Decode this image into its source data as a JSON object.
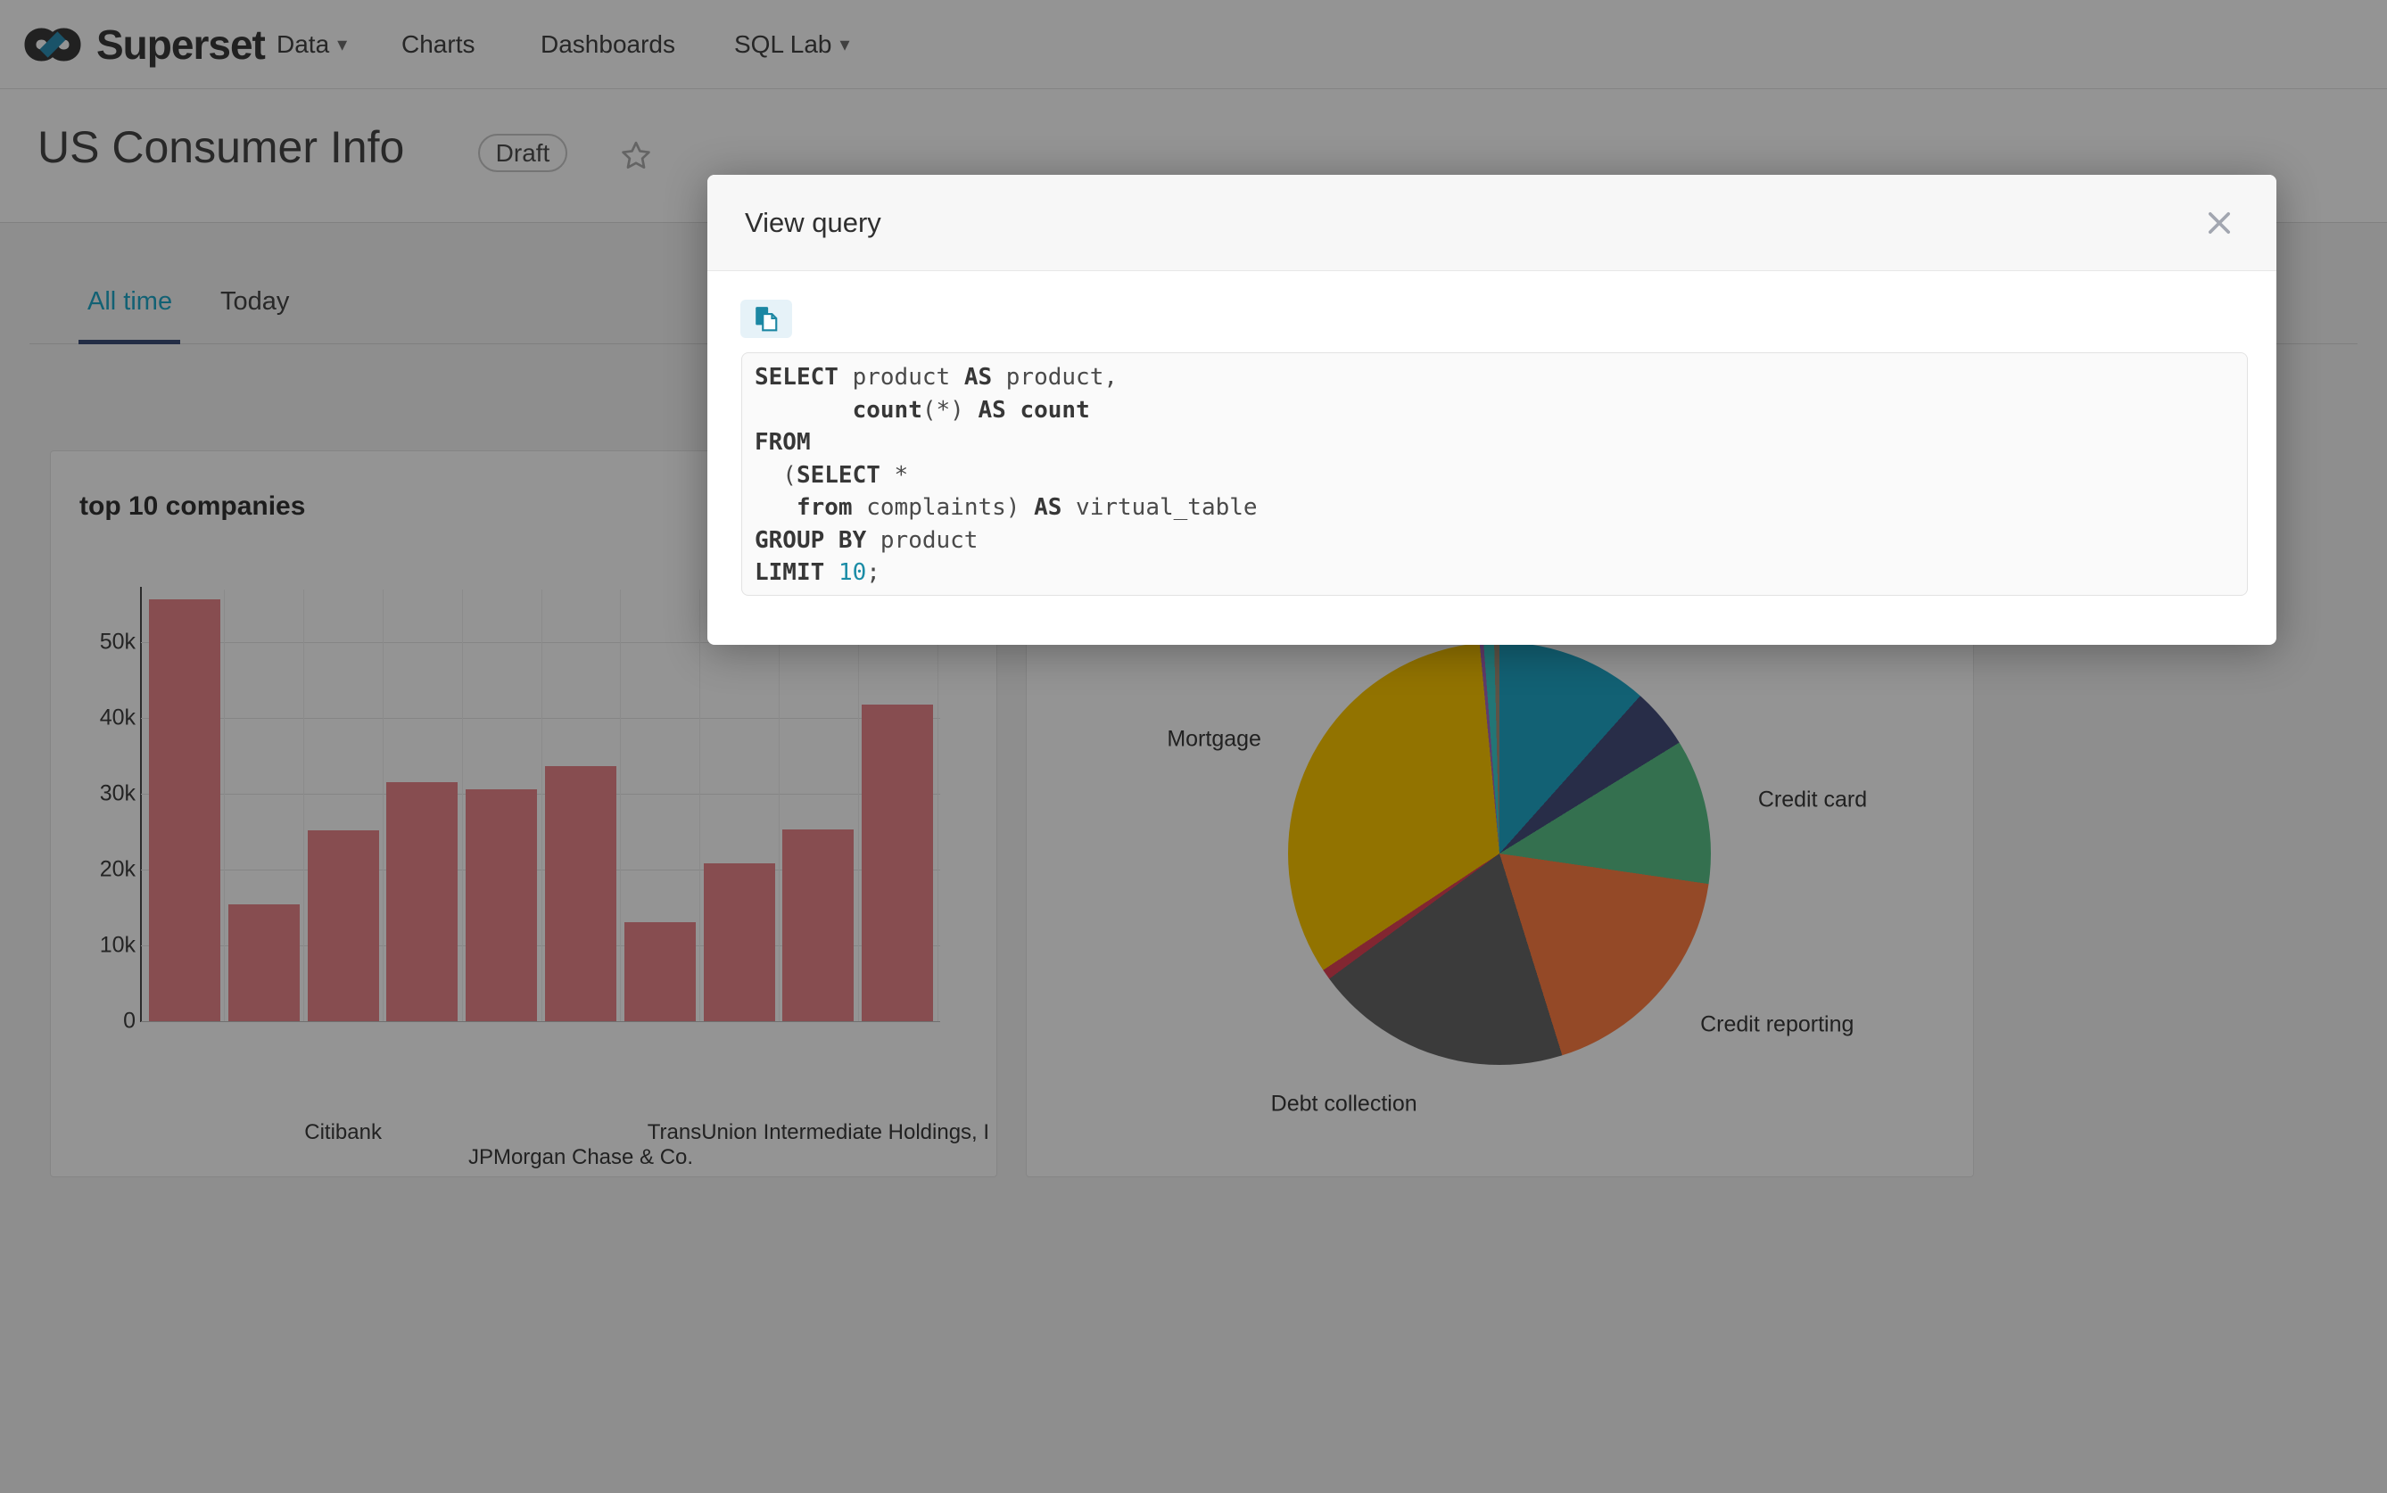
{
  "nav": {
    "brand": "Superset",
    "items": [
      {
        "label": "Data",
        "caret": true
      },
      {
        "label": "Charts",
        "caret": false
      },
      {
        "label": "Dashboards",
        "caret": false
      },
      {
        "label": "SQL Lab",
        "caret": true
      }
    ]
  },
  "header": {
    "title": "US Consumer Info",
    "status_badge": "Draft"
  },
  "filter_tabs": {
    "items": [
      {
        "label": "All time",
        "active": true
      },
      {
        "label": "Today",
        "active": false
      }
    ]
  },
  "modal": {
    "title": "View query",
    "sql_lines": [
      [
        [
          "SELECT",
          "k"
        ],
        [
          " product ",
          ""
        ],
        [
          "AS",
          "k"
        ],
        [
          " product,",
          ""
        ]
      ],
      [
        [
          "       ",
          ""
        ],
        [
          "count",
          "k"
        ],
        [
          "(*) ",
          ""
        ],
        [
          "AS",
          "k"
        ],
        [
          " ",
          ""
        ],
        [
          "count",
          "k"
        ]
      ],
      [
        [
          "FROM",
          "k"
        ]
      ],
      [
        [
          "  (",
          ""
        ],
        [
          "SELECT",
          "k"
        ],
        [
          " *",
          ""
        ]
      ],
      [
        [
          "   ",
          ""
        ],
        [
          "from",
          "k"
        ],
        [
          " complaints) ",
          ""
        ],
        [
          "AS",
          "k"
        ],
        [
          " virtual_table",
          ""
        ]
      ],
      [
        [
          "GROUP BY",
          "k"
        ],
        [
          " product",
          ""
        ]
      ],
      [
        [
          "LIMIT",
          "k"
        ],
        [
          " ",
          ""
        ],
        [
          "10",
          "n"
        ],
        [
          ";",
          ""
        ]
      ]
    ]
  },
  "chart_data": [
    {
      "type": "bar",
      "title": "top 10 companies",
      "xlabel": "",
      "ylabel": "",
      "ylim": [
        0,
        57000
      ],
      "grid": true,
      "legend": "none",
      "bar_color": "#E8858A",
      "values": [
        55600,
        15400,
        25200,
        31500,
        30600,
        33600,
        13100,
        20800,
        25300,
        41700
      ],
      "yticks": [
        {
          "v": 0,
          "label": "0"
        },
        {
          "v": 10000,
          "label": "10k"
        },
        {
          "v": 20000,
          "label": "20k"
        },
        {
          "v": 30000,
          "label": "30k"
        },
        {
          "v": 40000,
          "label": "40k"
        },
        {
          "v": 50000,
          "label": "50k"
        }
      ],
      "x_labels": [
        {
          "bar_index": 2,
          "row": 0,
          "label": "Citibank"
        },
        {
          "bar_index": 5,
          "row": 1,
          "label": "JPMorgan Chase & Co."
        },
        {
          "bar_index": 8,
          "row": 0,
          "label": "TransUnion Intermediate Holdings, I"
        }
      ]
    },
    {
      "type": "pie",
      "legend": "none",
      "slices": [
        {
          "label": "",
          "pct": 11.6,
          "color": "#1FA8C9"
        },
        {
          "label": "",
          "pct": 4.6,
          "color": "#454E7C"
        },
        {
          "label": "Credit card",
          "pct": 11.1,
          "color": "#5AC189"
        },
        {
          "label": "Credit reporting",
          "pct": 17.9,
          "color": "#FF7F44"
        },
        {
          "label": "Debt collection",
          "pct": 19.7,
          "color": "#666666"
        },
        {
          "label": "",
          "pct": 0.8,
          "color": "#E04355"
        },
        {
          "label": "Mortgage",
          "pct": 32.8,
          "color": "#FCC700"
        },
        {
          "label": "",
          "pct": 0.3,
          "color": "#A868B7"
        },
        {
          "label": "",
          "pct": 0.8,
          "color": "#3CCCCB"
        },
        {
          "label": "",
          "pct": 0.4,
          "color": "#A38F79"
        }
      ]
    }
  ],
  "icons": {
    "caret": "▾"
  },
  "colors": {
    "accent": "#1FA8C9",
    "ink_bar": "#3D4E77",
    "logo_teal": "#2E8FB5"
  }
}
